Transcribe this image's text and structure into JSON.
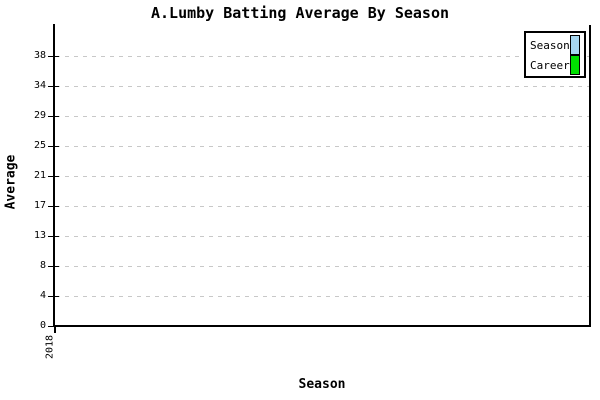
{
  "chart_data": {
    "type": "bar",
    "title": "A.Lumby Batting Average By Season",
    "xlabel": "Season",
    "ylabel": "Average",
    "categories": [
      "2018"
    ],
    "yticks": [
      0,
      4,
      8,
      13,
      17,
      21,
      25,
      29,
      34,
      38
    ],
    "ylim": [
      0,
      40
    ],
    "grid": "horizontal-dashed",
    "legend_position": "top-right",
    "series": [
      {
        "name": "Season",
        "color": "#A6D7F0",
        "values": [
          null
        ]
      },
      {
        "name": "Career",
        "color": "#00DF00",
        "values": [
          null
        ]
      }
    ]
  },
  "colors": {
    "background": "#FFFFFF",
    "axis": "#000000",
    "gridline": "#C8C8C8",
    "text": "#000000"
  }
}
